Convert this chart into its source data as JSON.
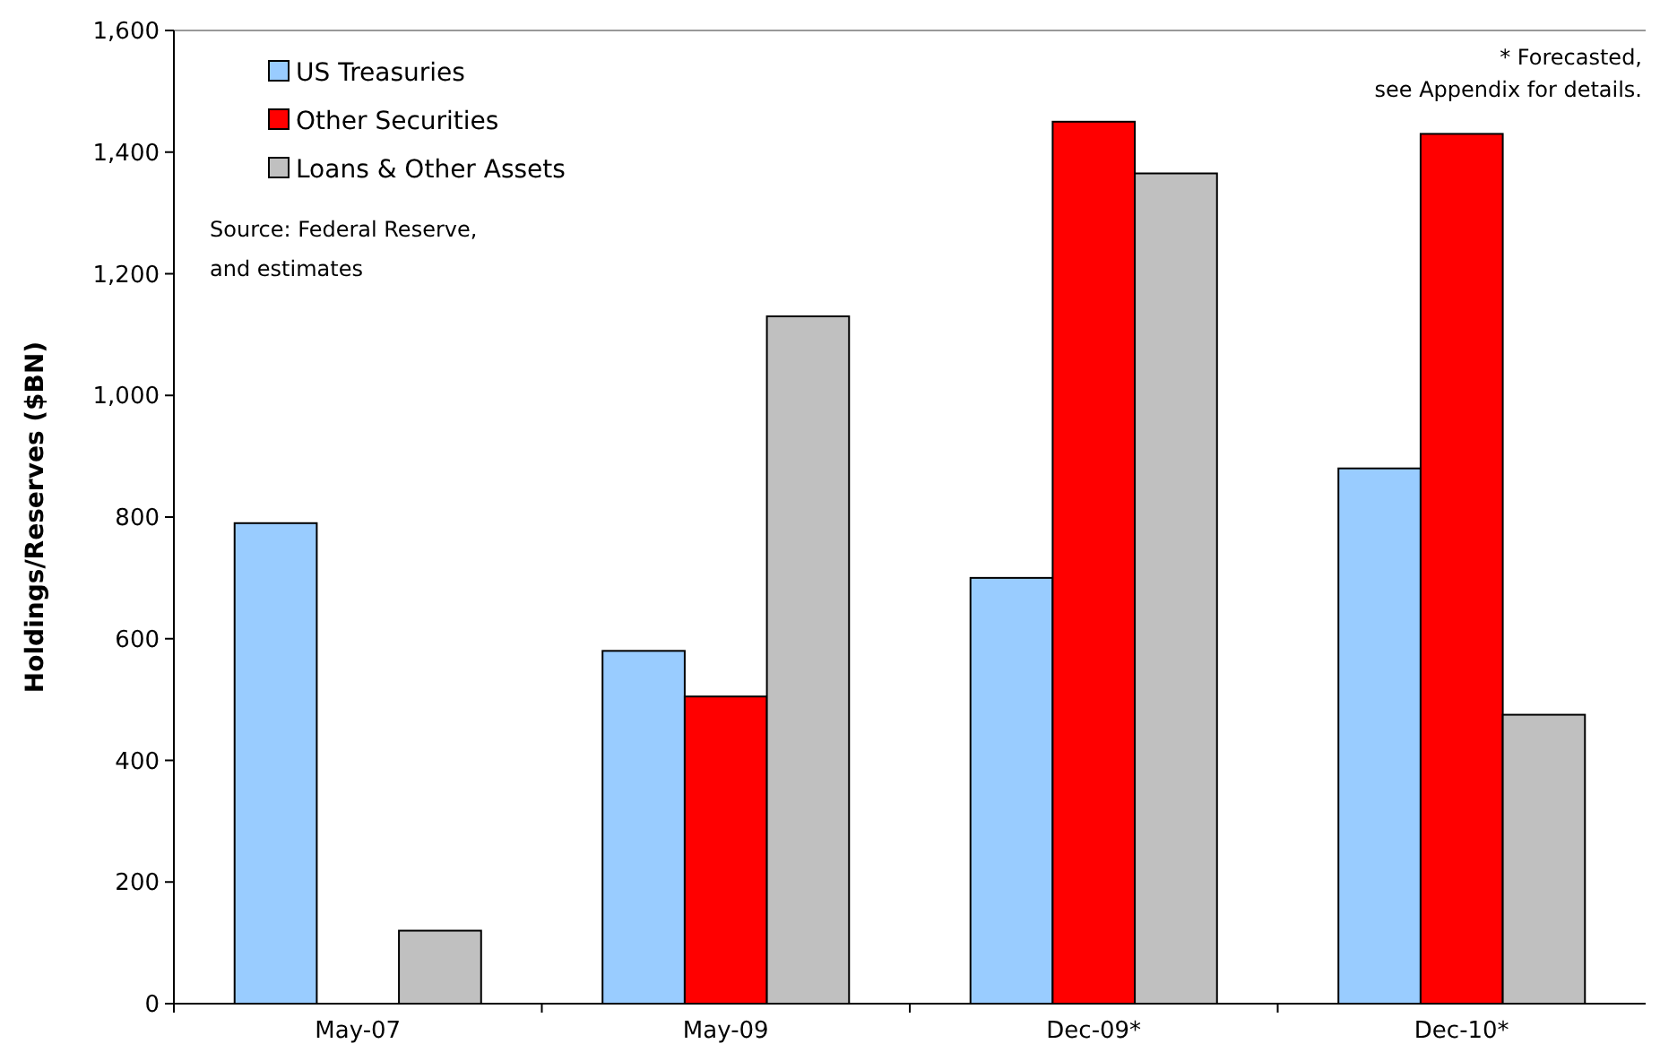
{
  "chart_data": {
    "type": "bar",
    "ylabel": "Holdings/Reserves ($BN)",
    "categories": [
      "May-07",
      "May-09",
      "Dec-09*",
      "Dec-10*"
    ],
    "series": [
      {
        "name": "US Treasuries",
        "color": "#99ccff",
        "values": [
          790,
          580,
          700,
          880
        ]
      },
      {
        "name": "Other Securities",
        "color": "#ff0000",
        "values": [
          null,
          505,
          1450,
          1430
        ]
      },
      {
        "name": "Loans & Other Assets",
        "color": "#c0c0c0",
        "values": [
          120,
          1130,
          1365,
          475
        ]
      }
    ],
    "ylim": [
      0,
      1600
    ],
    "yticks": [
      {
        "value": 0,
        "label": "0"
      },
      {
        "value": 200,
        "label": "200"
      },
      {
        "value": 400,
        "label": "400"
      },
      {
        "value": 600,
        "label": "600"
      },
      {
        "value": 800,
        "label": "800"
      },
      {
        "value": 1000,
        "label": "1,000"
      },
      {
        "value": 1200,
        "label": "1,200"
      },
      {
        "value": 1400,
        "label": "1,400"
      },
      {
        "value": 1600,
        "label": "1,600"
      }
    ],
    "legend": "top left",
    "grid": false,
    "annotations": [
      "* Forecasted, see Appendix for details.",
      "Source: Federal Reserve, and estimates"
    ]
  }
}
